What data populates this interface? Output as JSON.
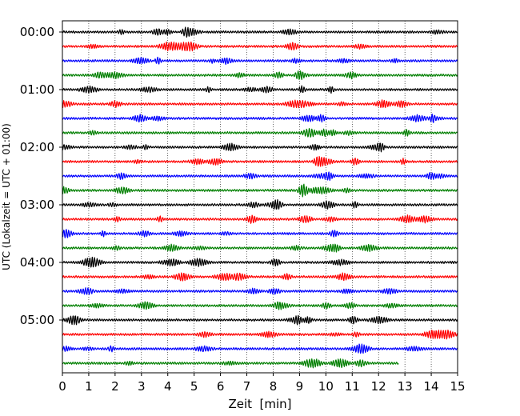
{
  "chart_data": {
    "type": "line",
    "xlabel": "Zeit  [min]",
    "ylabel": "UTC (Lokalzeit = UTC + 01:00)",
    "xlim": [
      0,
      15
    ],
    "x_ticks": [
      "0",
      "1",
      "2",
      "3",
      "4",
      "5",
      "6",
      "7",
      "8",
      "9",
      "10",
      "11",
      "12",
      "13",
      "14",
      "15"
    ],
    "y_ticks": [
      "00:00",
      "01:00",
      "02:00",
      "03:00",
      "04:00",
      "05:00"
    ],
    "grid": "vertical dotted",
    "trace_interval_min": 15,
    "color_cycle": [
      "#000000",
      "#ff0000",
      "#0000ff",
      "#007f00"
    ],
    "traces": [
      {
        "start": "00:00",
        "end_min": 15,
        "color": "#000000"
      },
      {
        "start": "00:15",
        "end_min": 15,
        "color": "#ff0000"
      },
      {
        "start": "00:30",
        "end_min": 15,
        "color": "#0000ff"
      },
      {
        "start": "00:45",
        "end_min": 15,
        "color": "#007f00"
      },
      {
        "start": "01:00",
        "end_min": 15,
        "color": "#000000"
      },
      {
        "start": "01:15",
        "end_min": 15,
        "color": "#ff0000"
      },
      {
        "start": "01:30",
        "end_min": 15,
        "color": "#0000ff"
      },
      {
        "start": "01:45",
        "end_min": 15,
        "color": "#007f00"
      },
      {
        "start": "02:00",
        "end_min": 15,
        "color": "#000000"
      },
      {
        "start": "02:15",
        "end_min": 15,
        "color": "#ff0000"
      },
      {
        "start": "02:30",
        "end_min": 15,
        "color": "#0000ff"
      },
      {
        "start": "02:45",
        "end_min": 15,
        "color": "#007f00"
      },
      {
        "start": "03:00",
        "end_min": 15,
        "color": "#000000"
      },
      {
        "start": "03:15",
        "end_min": 15,
        "color": "#ff0000"
      },
      {
        "start": "03:30",
        "end_min": 15,
        "color": "#0000ff"
      },
      {
        "start": "03:45",
        "end_min": 15,
        "color": "#007f00"
      },
      {
        "start": "04:00",
        "end_min": 15,
        "color": "#000000"
      },
      {
        "start": "04:15",
        "end_min": 15,
        "color": "#ff0000"
      },
      {
        "start": "04:30",
        "end_min": 15,
        "color": "#0000ff"
      },
      {
        "start": "04:45",
        "end_min": 15,
        "color": "#007f00"
      },
      {
        "start": "05:00",
        "end_min": 15,
        "color": "#000000"
      },
      {
        "start": "05:15",
        "end_min": 15,
        "color": "#ff0000"
      },
      {
        "start": "05:30",
        "end_min": 15,
        "color": "#0000ff"
      },
      {
        "start": "05:45",
        "end_min": 12.75,
        "color": "#007f00"
      }
    ]
  }
}
